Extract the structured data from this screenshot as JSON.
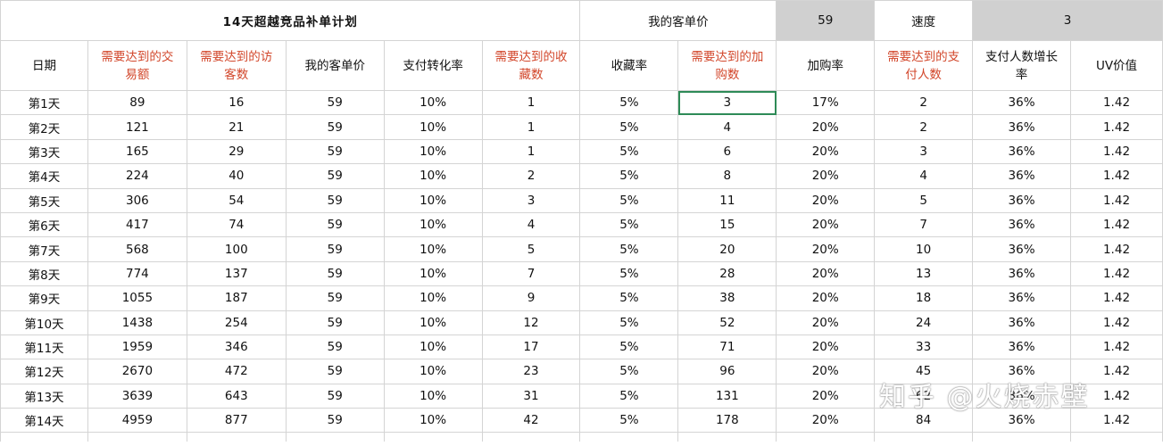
{
  "title": "14天超越竞品补单计划",
  "summary": {
    "price_label": "我的客单价",
    "price_value": "59",
    "speed_label": "速度",
    "speed_value": "3"
  },
  "headers": [
    {
      "text": "日期",
      "red": false
    },
    {
      "text": "需要达到的交易额",
      "red": true
    },
    {
      "text": "需要达到的访客数",
      "red": true
    },
    {
      "text": "我的客单价",
      "red": false
    },
    {
      "text": "支付转化率",
      "red": false
    },
    {
      "text": "需要达到的收藏数",
      "red": true
    },
    {
      "text": "收藏率",
      "red": false
    },
    {
      "text": "需要达到的加购数",
      "red": true
    },
    {
      "text": "加购率",
      "red": false
    },
    {
      "text": "需要达到的支付人数",
      "red": true
    },
    {
      "text": "支付人数增长率",
      "red": false
    },
    {
      "text": "UV价值",
      "red": false
    }
  ],
  "rows": [
    [
      "第1天",
      "89",
      "16",
      "59",
      "10%",
      "1",
      "5%",
      "3",
      "17%",
      "2",
      "36%",
      "1.42"
    ],
    [
      "第2天",
      "121",
      "21",
      "59",
      "10%",
      "1",
      "5%",
      "4",
      "20%",
      "2",
      "36%",
      "1.42"
    ],
    [
      "第3天",
      "165",
      "29",
      "59",
      "10%",
      "1",
      "5%",
      "6",
      "20%",
      "3",
      "36%",
      "1.42"
    ],
    [
      "第4天",
      "224",
      "40",
      "59",
      "10%",
      "2",
      "5%",
      "8",
      "20%",
      "4",
      "36%",
      "1.42"
    ],
    [
      "第5天",
      "306",
      "54",
      "59",
      "10%",
      "3",
      "5%",
      "11",
      "20%",
      "5",
      "36%",
      "1.42"
    ],
    [
      "第6天",
      "417",
      "74",
      "59",
      "10%",
      "4",
      "5%",
      "15",
      "20%",
      "7",
      "36%",
      "1.42"
    ],
    [
      "第7天",
      "568",
      "100",
      "59",
      "10%",
      "5",
      "5%",
      "20",
      "20%",
      "10",
      "36%",
      "1.42"
    ],
    [
      "第8天",
      "774",
      "137",
      "59",
      "10%",
      "7",
      "5%",
      "28",
      "20%",
      "13",
      "36%",
      "1.42"
    ],
    [
      "第9天",
      "1055",
      "187",
      "59",
      "10%",
      "9",
      "5%",
      "38",
      "20%",
      "18",
      "36%",
      "1.42"
    ],
    [
      "第10天",
      "1438",
      "254",
      "59",
      "10%",
      "12",
      "5%",
      "52",
      "20%",
      "24",
      "36%",
      "1.42"
    ],
    [
      "第11天",
      "1959",
      "346",
      "59",
      "10%",
      "17",
      "5%",
      "71",
      "20%",
      "33",
      "36%",
      "1.42"
    ],
    [
      "第12天",
      "2670",
      "472",
      "59",
      "10%",
      "23",
      "5%",
      "96",
      "20%",
      "45",
      "36%",
      "1.42"
    ],
    [
      "第13天",
      "3639",
      "643",
      "59",
      "10%",
      "31",
      "5%",
      "131",
      "20%",
      "62",
      "36%",
      "1.42"
    ],
    [
      "第14天",
      "4959",
      "877",
      "59",
      "10%",
      "42",
      "5%",
      "178",
      "20%",
      "84",
      "36%",
      "1.42"
    ]
  ],
  "selected_cell": {
    "row": 0,
    "col": 7
  },
  "colors": {
    "header_red": "#d2462a",
    "gray_fill": "#d0d0d0",
    "selection": "#2e8b57",
    "grid": "#d4d4d4"
  },
  "watermark": "知乎 @火烧赤壁"
}
